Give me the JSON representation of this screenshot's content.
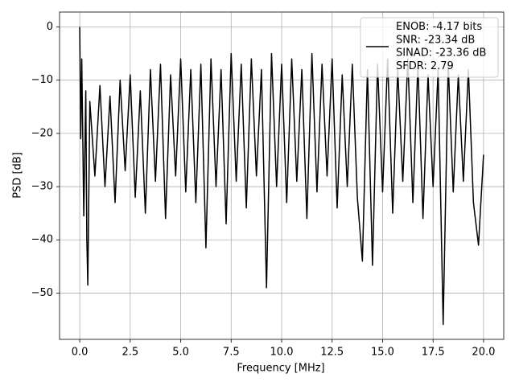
{
  "chart_data": {
    "type": "line",
    "xlabel": "Frequency [MHz]",
    "ylabel": "PSD [dB]",
    "xlim": [
      -1.0,
      21.0
    ],
    "ylim": [
      -58.7,
      2.8
    ],
    "xticks": [
      {
        "value": 0,
        "label": "0.0"
      },
      {
        "value": 2.5,
        "label": "2.5"
      },
      {
        "value": 5,
        "label": "5.0"
      },
      {
        "value": 7.5,
        "label": "7.5"
      },
      {
        "value": 10,
        "label": "10.0"
      },
      {
        "value": 12.5,
        "label": "12.5"
      },
      {
        "value": 15,
        "label": "15.0"
      },
      {
        "value": 17.5,
        "label": "17.5"
      },
      {
        "value": 20,
        "label": "20.0"
      }
    ],
    "yticks": [
      0,
      {
        "value": -10,
        "label": "−10"
      },
      {
        "value": -20,
        "label": "−20"
      },
      {
        "value": -30,
        "label": "−30"
      },
      {
        "value": -40,
        "label": "−40"
      },
      {
        "value": -50,
        "label": "−50"
      }
    ],
    "grid": true,
    "legend": "upper right",
    "x": [
      0,
      0.05,
      0.1,
      0.2,
      0.3,
      0.35,
      0.4,
      0.5,
      0.75,
      1,
      1.25,
      1.5,
      1.75,
      2,
      2.25,
      2.5,
      2.75,
      3,
      3.25,
      3.5,
      3.75,
      4,
      4.25,
      4.5,
      4.75,
      5,
      5.25,
      5.5,
      5.75,
      6,
      6.25,
      6.5,
      6.75,
      7,
      7.25,
      7.5,
      7.75,
      8,
      8.25,
      8.5,
      8.75,
      9,
      9.25,
      9.5,
      9.75,
      10,
      10.25,
      10.5,
      10.75,
      11,
      11.25,
      11.5,
      11.75,
      12,
      12.25,
      12.5,
      12.75,
      13,
      13.25,
      13.5,
      13.75,
      14,
      14.25,
      14.5,
      14.75,
      15,
      15.25,
      15.5,
      15.75,
      16,
      16.25,
      16.5,
      16.75,
      17,
      17.25,
      17.5,
      17.75,
      18,
      18.25,
      18.5,
      18.75,
      19,
      19.25,
      19.5,
      19.75,
      20
    ],
    "series": [
      {
        "name": "ENOB: -4.17 bits\nSNR: -23.34 dB\nSINAD: -23.36 dB\nSFDR: 2.79",
        "color": "#000000",
        "values": [
          0,
          -21,
          -6,
          -35.5,
          -12,
          -39.5,
          -48.5,
          -14,
          -28,
          -11,
          -30,
          -13,
          -33,
          -10,
          -27,
          -9,
          -32,
          -12,
          -35,
          -8,
          -29,
          -7,
          -36,
          -9,
          -28,
          -6,
          -31,
          -8,
          -33,
          -7,
          -41.5,
          -6,
          -30,
          -8,
          -37,
          -5,
          -29,
          -7,
          -34,
          -6,
          -28,
          -8,
          -49,
          -5,
          -30,
          -7,
          -33,
          -6,
          -29,
          -8,
          -36,
          -5,
          -31,
          -7,
          -28,
          -6,
          -34,
          -9,
          -30,
          -7,
          -32,
          -44,
          -8,
          -44.8,
          -7,
          -31,
          -6,
          -35,
          -8,
          -29,
          -6,
          -33,
          -7,
          -36,
          -9,
          -30,
          -8,
          -55.9,
          -7,
          -31,
          -9,
          -29,
          -8,
          -33,
          -41,
          -24
        ]
      }
    ]
  }
}
